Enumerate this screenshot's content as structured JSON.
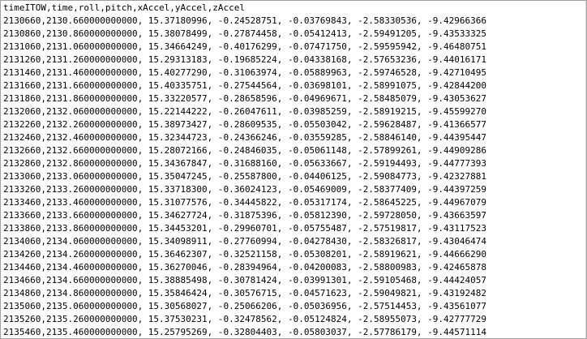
{
  "document": {
    "lines": [
      "timeITOW,time,roll,pitch,xAccel,yAccel,zAccel",
      "2130660,2130.660000000000, 15.37180996, -0.24528751, -0.03769843, -2.58330536, -9.42966366",
      "2130860,2130.860000000000, 15.38078499, -0.27874458, -0.05412413, -2.59491205, -9.43533325",
      "2131060,2131.060000000000, 15.34664249, -0.40176299, -0.07471750, -2.59595942, -9.46480751",
      "2131260,2131.260000000000, 15.29313183, -0.19685224, -0.04338168, -2.57653236, -9.44016171",
      "2131460,2131.460000000000, 15.40277290, -0.31063974, -0.05889963, -2.59746528, -9.42710495",
      "2131660,2131.660000000000, 15.40335751, -0.27544564, -0.03698101, -2.58991075, -9.42844200",
      "2131860,2131.860000000000, 15.33220577, -0.28658596, -0.04969671, -2.58485079, -9.43053627",
      "2132060,2132.060000000000, 15.22144222, -0.26047611, -0.03985259, -2.58919215, -9.45599270",
      "2132260,2132.260000000000, 15.38973427, -0.28609535, -0.05503042, -2.59628487, -9.41366577",
      "2132460,2132.460000000000, 15.32344723, -0.24366246, -0.03559285, -2.58846140, -9.44395447",
      "2132660,2132.660000000000, 15.28072166, -0.24846035, -0.05061148, -2.57899261, -9.44909286",
      "2132860,2132.860000000000, 15.34367847, -0.31688160, -0.05633667, -2.59194493, -9.44777393",
      "2133060,2133.060000000000, 15.35047245, -0.25587800, -0.04406125, -2.59084773, -9.42327881",
      "2133260,2133.260000000000, 15.33718300, -0.36024123, -0.05469009, -2.58377409, -9.44397259",
      "2133460,2133.460000000000, 15.31077576, -0.34445822, -0.05317174, -2.58645225, -9.44967079",
      "2133660,2133.660000000000, 15.34627724, -0.31875396, -0.05812390, -2.59728050, -9.43663597",
      "2133860,2133.860000000000, 15.34453201, -0.29960701, -0.05755487, -2.57519817, -9.43117523",
      "2134060,2134.060000000000, 15.34098911, -0.27760994, -0.04278430, -2.58326817, -9.43046474",
      "2134260,2134.260000000000, 15.36462307, -0.32521158, -0.05308201, -2.58919621, -9.44666290",
      "2134460,2134.460000000000, 15.36270046, -0.28394964, -0.04200083, -2.58800983, -9.42465878",
      "2134660,2134.660000000000, 15.38885498, -0.30781424, -0.03991301, -2.59105468, -9.44424057",
      "2134860,2134.860000000000, 15.35846424, -0.30576715, -0.04571623, -2.59049821, -9.43192482",
      "2135060,2135.060000000000, 15.30568027, -0.25066206, -0.05036956, -2.57514453, -9.43561077",
      "2135260,2135.260000000000, 15.37530231, -0.32478562, -0.05124824, -2.58955073, -9.42777729",
      "2135460,2135.460000000000, 15.25795269, -0.32804403, -0.05803037, -2.57786179, -9.44571114"
    ]
  }
}
